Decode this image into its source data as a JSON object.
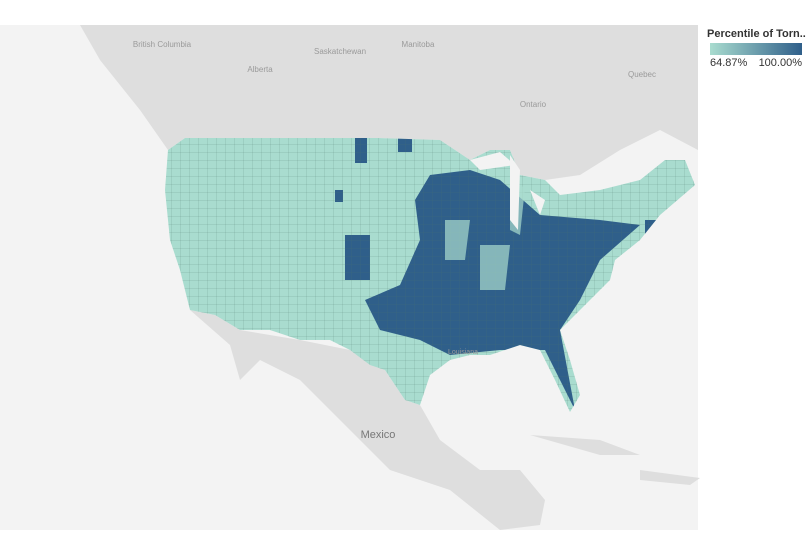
{
  "legend": {
    "title": "Percentile of Torn..",
    "min_label": "64.87%",
    "max_label": "100.00%",
    "min_color": "#a9dccf",
    "max_color": "#2f5f8a"
  },
  "map_labels": {
    "british_columbia": "British Columbia",
    "alberta": "Alberta",
    "saskatchewan": "Saskatchewan",
    "manitoba": "Manitoba",
    "ontario": "Ontario",
    "quebec": "Quebec",
    "mexico": "Mexico",
    "louisiana": "Louisiana"
  }
}
